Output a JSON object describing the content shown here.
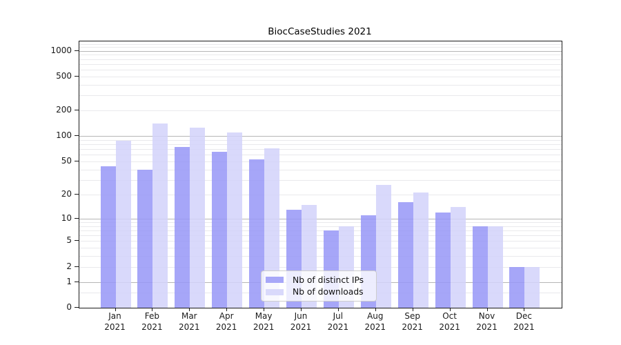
{
  "chart_data": {
    "type": "bar",
    "title": "BiocCaseStudies 2021",
    "categories": [
      "Jan",
      "Feb",
      "Mar",
      "Apr",
      "May",
      "Jun",
      "Jul",
      "Aug",
      "Sep",
      "Oct",
      "Nov",
      "Dec"
    ],
    "category_year_label": "2021",
    "series": [
      {
        "name": "Nb of distinct IPs",
        "color": "#a7a7f8",
        "fill_rgba": "rgba(150,150,247,0.85)",
        "values": [
          44,
          40,
          75,
          65,
          53,
          13,
          7,
          11,
          16,
          12,
          8,
          2
        ]
      },
      {
        "name": "Nb of downloads",
        "color": "#d9d9fb",
        "fill_rgba": "rgba(210,210,250,0.85)",
        "values": [
          88,
          140,
          126,
          110,
          72,
          15,
          8,
          26,
          21,
          14,
          8,
          2
        ]
      }
    ],
    "xlabel": "",
    "ylabel": "",
    "yscale": "log1p",
    "ylim": [
      0,
      1286
    ],
    "y_tick_labels": [
      "1000",
      "500",
      "200",
      "100",
      "50",
      "20",
      "10",
      "5",
      "2",
      "1",
      "0"
    ],
    "y_tick_values": [
      1000,
      500,
      200,
      100,
      50,
      20,
      10,
      5,
      2,
      1,
      0
    ],
    "grid_major_values": [
      1,
      10,
      100,
      1000
    ],
    "grid_minor_values": [
      0.5,
      2,
      3,
      4,
      5,
      6,
      7,
      8,
      9,
      20,
      30,
      40,
      50,
      60,
      70,
      80,
      90,
      200,
      300,
      400,
      500,
      600,
      700,
      800,
      900,
      1100,
      1200
    ],
    "grid": "on",
    "legend_position": "lower center-right inside plot"
  },
  "legend": {
    "items": [
      {
        "label": "Nb of distinct IPs"
      },
      {
        "label": "Nb of downloads"
      }
    ]
  }
}
